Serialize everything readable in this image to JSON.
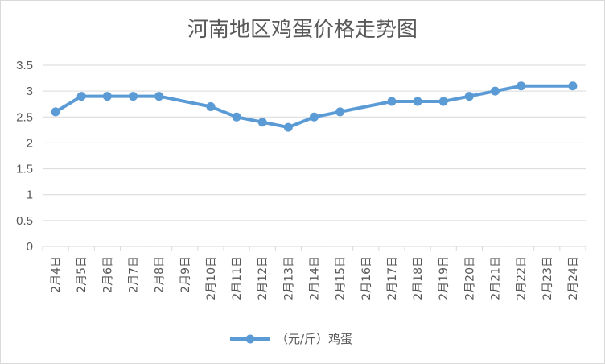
{
  "chart_data": {
    "type": "line",
    "title": "河南地区鸡蛋价格走势图",
    "categories": [
      "2月4日",
      "2月5日",
      "2月6日",
      "2月7日",
      "2月8日",
      "2月9日",
      "2月10日",
      "2月11日",
      "2月12日",
      "2月13日",
      "2月14日",
      "2月15日",
      "2月16日",
      "2月17日",
      "2月18日",
      "2月19日",
      "2月20日",
      "2月21日",
      "2月22日",
      "2月23日",
      "2月24日"
    ],
    "series": [
      {
        "name": "（元/斤）鸡蛋",
        "color": "#5b9bd5",
        "values": [
          2.6,
          2.9,
          2.9,
          2.9,
          2.9,
          null,
          2.7,
          2.5,
          2.4,
          2.3,
          2.5,
          2.6,
          null,
          2.8,
          2.8,
          2.8,
          2.9,
          3.0,
          3.1,
          null,
          3.1
        ]
      }
    ],
    "yticks": [
      "0",
      "0.5",
      "1",
      "1.5",
      "2",
      "2.5",
      "3",
      "3.5"
    ],
    "ylim": [
      0,
      3.5
    ],
    "grid": true,
    "legend_position": "bottom",
    "gridline_color": "#d9d9d9"
  }
}
